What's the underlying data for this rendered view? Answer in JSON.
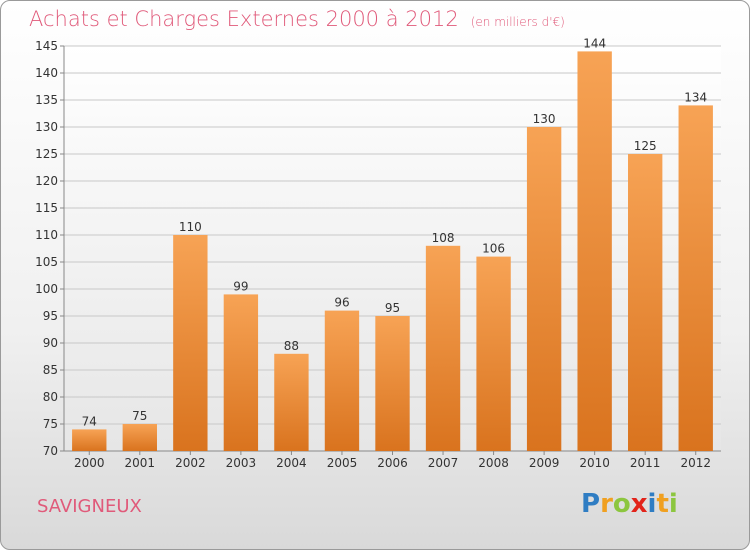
{
  "title": "Achats et Charges Externes 2000 à 2012",
  "subtitle": "(en milliers d'€)",
  "commune": "SAVIGNEUX",
  "logo": {
    "text": "Proxiti",
    "letters": [
      {
        "char": "P",
        "color": "#2f7dc3"
      },
      {
        "char": "r",
        "color": "#f0a020"
      },
      {
        "char": "o",
        "color": "#8cc63f"
      },
      {
        "char": "x",
        "color": "#e2231a"
      },
      {
        "char": "i",
        "color": "#2f7dc3"
      },
      {
        "char": "t",
        "color": "#f0a020"
      },
      {
        "char": "i",
        "color": "#8cc63f"
      }
    ]
  },
  "colors": {
    "title": "#e05a7a",
    "bar_top": "#f7a355",
    "bar_bottom": "#d9731e",
    "grid": "#c8c8c8",
    "axis_text": "#333333"
  },
  "chart_data": {
    "type": "bar",
    "categories": [
      "2000",
      "2001",
      "2002",
      "2003",
      "2004",
      "2005",
      "2006",
      "2007",
      "2008",
      "2009",
      "2010",
      "2011",
      "2012"
    ],
    "values": [
      74,
      75,
      110,
      99,
      88,
      96,
      95,
      108,
      106,
      130,
      144,
      125,
      134
    ],
    "ylim": [
      70,
      145
    ],
    "yticks": [
      70,
      75,
      80,
      85,
      90,
      95,
      100,
      105,
      110,
      115,
      120,
      125,
      130,
      135,
      140,
      145
    ],
    "grid": true
  }
}
